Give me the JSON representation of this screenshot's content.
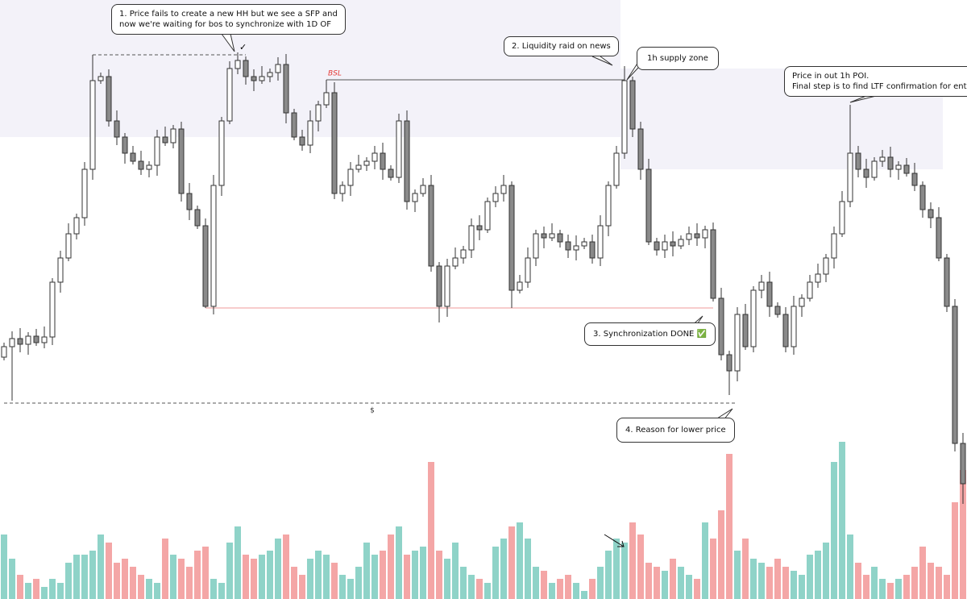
{
  "chart_data": {
    "type": "candlestick",
    "ylim": [
      0,
      743
    ],
    "y2lim": [
      0,
      200
    ],
    "up_color": "#ffffff",
    "down_color": "#8a8a8a",
    "wick_color": "#333333",
    "volume_up_color": "#8fd3c8",
    "volume_down_color": "#f4a6a6",
    "open": [
      300,
      313,
      323,
      316,
      326,
      318,
      325,
      393,
      423,
      453,
      473,
      533,
      643,
      648,
      593,
      573,
      553,
      543,
      533,
      538,
      573,
      566,
      583,
      503,
      483,
      463,
      363,
      513,
      593,
      658,
      668,
      648,
      643,
      648,
      653,
      663,
      603,
      573,
      563,
      593,
      613,
      628,
      503,
      513,
      533,
      538,
      543,
      553,
      533,
      523,
      593,
      493,
      503,
      513,
      413,
      363,
      413,
      423,
      433,
      463,
      458,
      493,
      503,
      513,
      383,
      393,
      423,
      453,
      448,
      453,
      443,
      433,
      438,
      443,
      423,
      463,
      513,
      553,
      643,
      583,
      533,
      443,
      433,
      443,
      438,
      446,
      453,
      448,
      458,
      373,
      303,
      283,
      353,
      313,
      383,
      393,
      363,
      353,
      313,
      363,
      373,
      393,
      403,
      423,
      453,
      493,
      553,
      533,
      523,
      543,
      548,
      533,
      538,
      528,
      513,
      483,
      473,
      423,
      363,
      193
    ],
    "high": [
      318,
      332,
      336,
      331,
      335,
      338,
      398,
      432,
      466,
      478,
      542,
      675,
      653,
      657,
      606,
      578,
      562,
      556,
      543,
      582,
      586,
      588,
      592,
      516,
      488,
      472,
      526,
      598,
      667,
      678,
      673,
      657,
      661,
      658,
      672,
      676,
      608,
      582,
      606,
      618,
      644,
      641,
      518,
      542,
      551,
      548,
      562,
      566,
      538,
      602,
      606,
      508,
      522,
      526,
      418,
      422,
      436,
      438,
      472,
      476,
      498,
      512,
      526,
      518,
      402,
      436,
      458,
      462,
      466,
      458,
      452,
      451,
      448,
      452,
      476,
      518,
      562,
      661,
      648,
      592,
      546,
      448,
      452,
      456,
      451,
      462,
      466,
      463,
      467,
      386,
      308,
      362,
      366,
      388,
      402,
      406,
      368,
      362,
      376,
      378,
      402,
      416,
      428,
      462,
      506,
      613,
      562,
      546,
      548,
      557,
      561,
      543,
      547,
      541,
      518,
      492,
      486,
      428,
      372,
      206
    ],
    "low": [
      296,
      246,
      306,
      303,
      314,
      311,
      315,
      380,
      419,
      446,
      463,
      520,
      639,
      586,
      563,
      540,
      539,
      526,
      523,
      525,
      562,
      559,
      493,
      470,
      459,
      361,
      353,
      500,
      589,
      651,
      638,
      630,
      639,
      641,
      643,
      590,
      569,
      556,
      553,
      580,
      609,
      496,
      493,
      500,
      529,
      531,
      533,
      520,
      519,
      516,
      483,
      480,
      499,
      406,
      343,
      350,
      409,
      416,
      423,
      445,
      454,
      486,
      493,
      361,
      379,
      386,
      413,
      435,
      444,
      436,
      423,
      420,
      434,
      416,
      413,
      450,
      509,
      546,
      573,
      520,
      439,
      426,
      423,
      425,
      434,
      439,
      438,
      435,
      369,
      296,
      253,
      270,
      309,
      306,
      373,
      350,
      349,
      306,
      303,
      350,
      369,
      386,
      393,
      410,
      449,
      486,
      523,
      510,
      519,
      536,
      523,
      520,
      524,
      506,
      473,
      460,
      419,
      356,
      183,
      118
    ],
    "close": [
      313,
      323,
      316,
      326,
      318,
      325,
      393,
      423,
      453,
      473,
      533,
      643,
      648,
      593,
      573,
      553,
      543,
      533,
      538,
      573,
      566,
      583,
      503,
      483,
      463,
      363,
      513,
      593,
      658,
      668,
      648,
      643,
      648,
      653,
      663,
      603,
      573,
      563,
      593,
      613,
      628,
      503,
      513,
      533,
      538,
      543,
      553,
      533,
      523,
      593,
      493,
      503,
      513,
      413,
      363,
      413,
      423,
      433,
      463,
      458,
      493,
      503,
      513,
      383,
      393,
      423,
      453,
      448,
      453,
      443,
      433,
      438,
      443,
      423,
      463,
      513,
      553,
      643,
      583,
      533,
      443,
      433,
      443,
      438,
      446,
      453,
      448,
      458,
      373,
      303,
      283,
      353,
      313,
      383,
      393,
      363,
      353,
      313,
      363,
      373,
      393,
      403,
      423,
      453,
      493,
      553,
      533,
      523,
      543,
      548,
      533,
      538,
      528,
      513,
      483,
      473,
      423,
      363,
      193,
      143
    ],
    "volume": [
      80,
      50,
      30,
      20,
      25,
      15,
      25,
      20,
      45,
      55,
      55,
      60,
      80,
      70,
      45,
      50,
      40,
      30,
      25,
      20,
      75,
      55,
      50,
      40,
      60,
      65,
      25,
      20,
      70,
      90,
      55,
      50,
      55,
      60,
      75,
      80,
      40,
      30,
      50,
      60,
      55,
      45,
      30,
      25,
      40,
      70,
      55,
      60,
      80,
      90,
      55,
      60,
      65,
      170,
      60,
      50,
      70,
      40,
      30,
      25,
      20,
      65,
      75,
      90,
      95,
      75,
      40,
      35,
      20,
      25,
      30,
      20,
      10,
      25,
      40,
      60,
      75,
      70,
      95,
      80,
      45,
      40,
      35,
      50,
      40,
      30,
      25,
      95,
      75,
      110,
      180,
      60,
      75,
      50,
      45,
      40,
      50,
      40,
      35,
      30,
      55,
      60,
      70,
      170,
      195,
      80,
      45,
      30,
      40,
      25,
      20,
      25,
      30,
      40,
      65,
      45,
      40,
      30,
      120,
      160
    ],
    "zones": [
      {
        "low": 573,
        "high": 743,
        "from": 0,
        "to": 76,
        "color": "#f3f2f9"
      },
      {
        "low": 533,
        "high": 658,
        "from": 77,
        "to": 116,
        "color": "#f3f2f9"
      }
    ],
    "levels": [
      {
        "value": 675,
        "from": 11,
        "to": 30,
        "color": "#555555",
        "dashed": true
      },
      {
        "value": 644,
        "from": 40,
        "to": 77,
        "color": "#555555",
        "dashed": false,
        "label": "BSL",
        "label_color": "#e53935"
      },
      {
        "value": 361,
        "from": 25,
        "to": 88,
        "color": "#ef9a9a",
        "dashed": false
      },
      {
        "value": 243,
        "from": 0,
        "to": 91,
        "color": "#555555",
        "dashed": true,
        "label": "$",
        "label_color": "#333333"
      }
    ],
    "annotations": [
      [
        "1. Price fails to create a new HH but we see a SFP and",
        "now we're waiting for bos to synchronize with 1D OF"
      ],
      [
        "2. Liquidity raid on news"
      ],
      [
        "1h supply zone"
      ],
      [
        "Price in out 1h POI.",
        "Final step is to find LTF confirmation for entry"
      ],
      [
        "3. Synchronization DONE ✅"
      ],
      [
        "4. Reason for lower price"
      ]
    ],
    "checkmark": "✓"
  }
}
